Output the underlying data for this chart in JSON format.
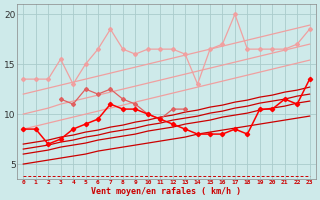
{
  "background_color": "#ceeaea",
  "grid_color": "#aacccc",
  "x_label": "Vent moyen/en rafales ( km/h )",
  "ylim": [
    3.5,
    21
  ],
  "xlim": [
    -0.5,
    23.5
  ],
  "yticks": [
    5,
    10,
    15,
    20
  ],
  "xticks": [
    0,
    1,
    2,
    3,
    4,
    5,
    6,
    7,
    8,
    9,
    10,
    11,
    12,
    13,
    14,
    15,
    16,
    17,
    18,
    19,
    20,
    21,
    22,
    23
  ],
  "pink_zigzag1": [
    13.5,
    13.5,
    13.5,
    15.5,
    13.0,
    15.0,
    16.5,
    18.5,
    16.5,
    16.0,
    16.5,
    16.5,
    16.5,
    16.0,
    13.0,
    16.5,
    17.0,
    20.0,
    16.5,
    16.5,
    16.5,
    16.5,
    17.0,
    18.5
  ],
  "pink_zigzag2": [
    null,
    null,
    null,
    11.5,
    11.0,
    12.5,
    12.0,
    12.5,
    11.5,
    11.0,
    10.0,
    9.5,
    10.5,
    10.5,
    null,
    null,
    null,
    null,
    null,
    null,
    null,
    null,
    null,
    null
  ],
  "pink_straight_1": [
    8.5,
    8.8,
    9.1,
    9.4,
    9.7,
    10.0,
    10.3,
    10.6,
    10.9,
    11.2,
    11.5,
    11.8,
    12.1,
    12.4,
    12.7,
    13.0,
    13.3,
    13.6,
    13.9,
    14.2,
    14.5,
    14.8,
    15.1,
    15.4
  ],
  "pink_straight_2": [
    10.0,
    10.3,
    10.6,
    11.0,
    11.3,
    11.6,
    11.9,
    12.2,
    12.5,
    12.8,
    13.1,
    13.4,
    13.7,
    14.0,
    14.3,
    14.6,
    14.9,
    15.2,
    15.5,
    15.8,
    16.1,
    16.4,
    16.7,
    17.0
  ],
  "pink_straight_3": [
    12.0,
    12.3,
    12.6,
    12.9,
    13.2,
    13.5,
    13.8,
    14.1,
    14.4,
    14.7,
    15.0,
    15.3,
    15.6,
    15.9,
    16.2,
    16.5,
    16.8,
    17.1,
    17.4,
    17.7,
    18.0,
    18.3,
    18.6,
    18.9
  ],
  "red_zigzag1": [
    8.5,
    8.5,
    7.0,
    7.5,
    8.5,
    9.0,
    9.5,
    11.0,
    10.5,
    10.5,
    10.0,
    9.5,
    9.0,
    8.5,
    8.0,
    8.0,
    8.0,
    8.5,
    8.0,
    10.5,
    10.5,
    11.5,
    11.0,
    13.5
  ],
  "red_zigzag2": [
    null,
    null,
    null,
    null,
    null,
    null,
    null,
    null,
    null,
    null,
    null,
    null,
    null,
    null,
    null,
    null,
    null,
    null,
    null,
    null,
    null,
    null,
    null,
    null
  ],
  "red_straight_1": [
    5.0,
    5.2,
    5.4,
    5.6,
    5.8,
    6.0,
    6.3,
    6.5,
    6.7,
    6.9,
    7.1,
    7.3,
    7.5,
    7.7,
    8.0,
    8.2,
    8.4,
    8.6,
    8.8,
    9.0,
    9.2,
    9.4,
    9.6,
    9.8
  ],
  "red_straight_2": [
    6.0,
    6.2,
    6.4,
    6.7,
    6.9,
    7.1,
    7.4,
    7.6,
    7.8,
    8.0,
    8.3,
    8.5,
    8.7,
    9.0,
    9.2,
    9.4,
    9.7,
    9.9,
    10.1,
    10.4,
    10.6,
    10.8,
    11.1,
    11.3
  ],
  "red_straight_3": [
    6.5,
    6.7,
    6.9,
    7.2,
    7.4,
    7.7,
    7.9,
    8.2,
    8.4,
    8.6,
    8.9,
    9.1,
    9.4,
    9.6,
    9.8,
    10.1,
    10.3,
    10.6,
    10.8,
    11.1,
    11.3,
    11.5,
    11.8,
    12.0
  ],
  "red_straight_4": [
    7.0,
    7.2,
    7.4,
    7.7,
    7.9,
    8.2,
    8.4,
    8.7,
    8.9,
    9.2,
    9.4,
    9.7,
    9.9,
    10.2,
    10.4,
    10.7,
    10.9,
    11.2,
    11.4,
    11.7,
    11.9,
    12.2,
    12.4,
    12.7
  ],
  "bottom_dash": [
    3.8,
    3.8,
    3.8,
    3.8,
    3.8,
    3.8,
    3.8,
    3.8,
    3.8,
    3.8,
    3.8,
    3.8,
    3.8,
    3.8,
    3.8,
    3.8,
    3.8,
    3.8,
    3.8,
    3.8,
    3.8,
    3.8,
    3.8,
    3.8
  ]
}
